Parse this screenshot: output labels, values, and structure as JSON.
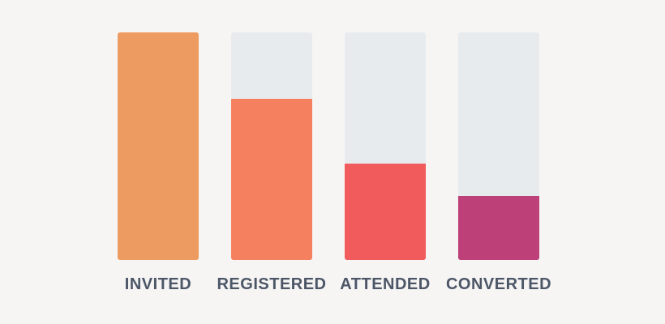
{
  "page": {
    "background_color": "#F6F5F4"
  },
  "chart_data": {
    "type": "bar",
    "subtype": "funnel",
    "categories": [
      "INVITED",
      "REGISTERED",
      "ATTENDED",
      "CONVERTED"
    ],
    "values": [
      100,
      71,
      42.5,
      28
    ],
    "value_note": "percent of full bar height, estimated from pixels; no numeric labels shown",
    "title": "",
    "xlabel": "",
    "ylabel": "",
    "ylim": [
      0,
      100
    ],
    "grid": false,
    "legend": false,
    "bar_colors": [
      "#ED9B60",
      "#F5805F",
      "#F15B5B",
      "#BD4078"
    ],
    "track_color": "#E8EBEE",
    "label_color": "#4C5667"
  }
}
